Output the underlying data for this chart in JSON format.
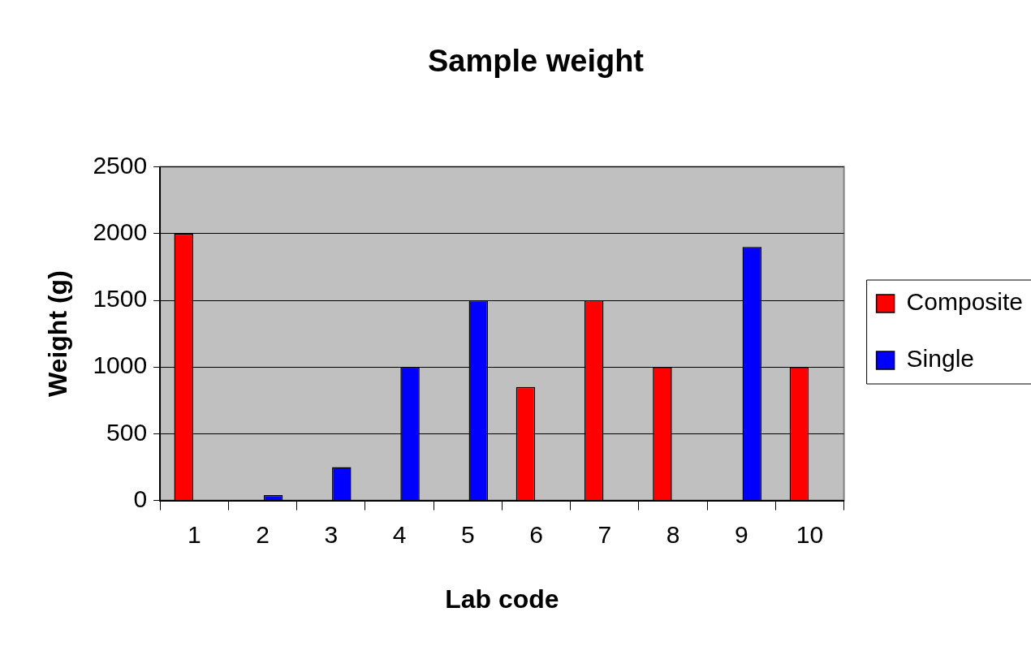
{
  "chart_data": {
    "type": "bar",
    "title": "Sample weight",
    "xlabel": "Lab code",
    "ylabel": "Weight (g)",
    "categories": [
      "1",
      "2",
      "3",
      "4",
      "5",
      "6",
      "7",
      "8",
      "9",
      "10"
    ],
    "series": [
      {
        "name": "Composite",
        "color": "#ff0000",
        "values": [
          2000,
          null,
          null,
          null,
          null,
          850,
          1500,
          1000,
          null,
          1000
        ]
      },
      {
        "name": "Single",
        "color": "#0000ff",
        "values": [
          null,
          40,
          250,
          1000,
          1500,
          null,
          null,
          null,
          1900,
          null
        ]
      }
    ],
    "ylim": [
      0,
      2500
    ],
    "yticks": [
      0,
      500,
      1000,
      1500,
      2000,
      2500
    ],
    "grid": "y",
    "legend": "right"
  }
}
